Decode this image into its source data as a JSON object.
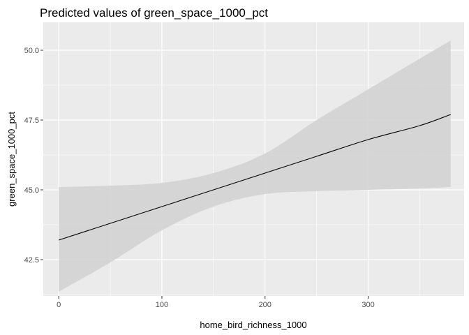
{
  "chart_data": {
    "type": "line",
    "title": "Predicted values of green_space_1000_pct",
    "xlabel": "home_bird_richness_1000",
    "ylabel": "green_space_1000_pct",
    "xlim": [
      -15,
      393
    ],
    "ylim": [
      41.2,
      51.0
    ],
    "x_ticks": [
      0,
      100,
      200,
      300
    ],
    "x_tick_labels": [
      "0",
      "100",
      "200",
      "300"
    ],
    "y_ticks": [
      42.5,
      45.0,
      47.5,
      50.0
    ],
    "y_tick_labels": [
      "42.5",
      "45.0",
      "47.5",
      "50.0"
    ],
    "grid": true,
    "colors": {
      "panel_background": "#ebebeb",
      "grid_line": "#ffffff",
      "ribbon": "#d3d3d3",
      "line": "#000000"
    },
    "series": [
      {
        "x": [
          0,
          50,
          100,
          150,
          200,
          250,
          300,
          350,
          380
        ],
        "y": [
          43.2,
          43.8,
          44.4,
          45.0,
          45.6,
          46.2,
          46.8,
          47.3,
          47.7
        ],
        "lower": [
          41.35,
          42.4,
          43.55,
          44.4,
          44.85,
          44.95,
          45.0,
          45.05,
          45.1
        ],
        "upper": [
          45.1,
          45.15,
          45.25,
          45.6,
          46.3,
          47.5,
          48.6,
          49.7,
          50.35
        ]
      }
    ]
  }
}
